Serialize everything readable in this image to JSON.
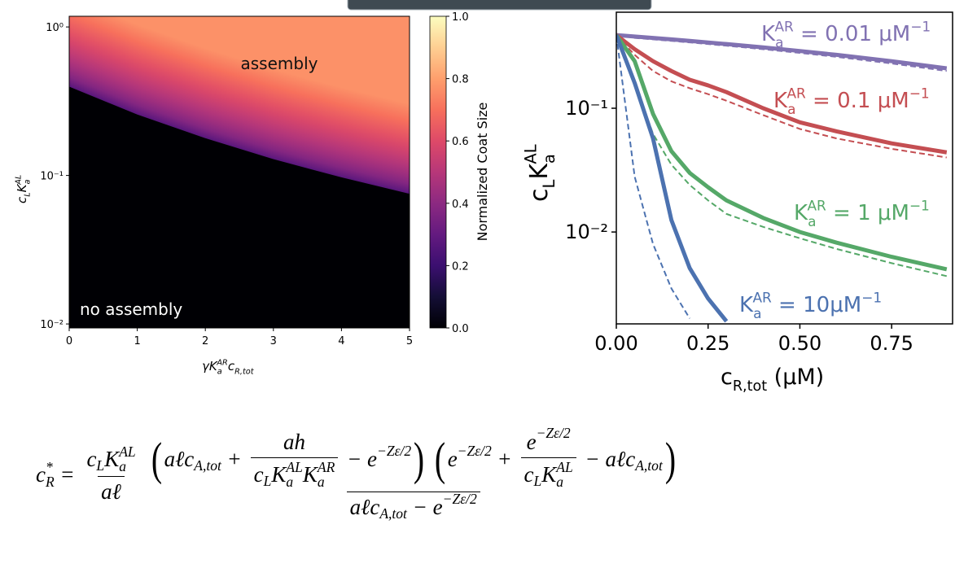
{
  "chart_data": [
    {
      "type": "heatmap",
      "colormap": "magma",
      "xlim": [
        0,
        5
      ],
      "xticks": [
        0,
        1,
        2,
        3,
        4,
        5
      ],
      "ylim": [
        0.0094,
        1.18
      ],
      "log_y": true,
      "yticks": [
        {
          "value": 0.01,
          "label": "10⁻²"
        },
        {
          "value": 0.1,
          "label": "10⁻¹"
        },
        {
          "value": 1,
          "label": "10⁰"
        }
      ],
      "xlabel": [
        {
          "t": "γK"
        },
        {
          "stack": {
            "sup": "AR",
            "sub": "a"
          }
        },
        {
          "t": "c"
        },
        {
          "t": "R,tot",
          "pos": "sub"
        }
      ],
      "ylabel": [
        {
          "t": "c"
        },
        {
          "t": "L",
          "pos": "sub"
        },
        {
          "t": "K"
        },
        {
          "stack": {
            "sup": "AL",
            "sub": "a"
          }
        }
      ],
      "boundary": {
        "x": [
          0,
          1,
          2,
          3,
          4,
          5
        ],
        "y": [
          0.4,
          0.26,
          0.18,
          0.13,
          0.098,
          0.076
        ]
      },
      "z_boundary": 0.28,
      "z_top": 0.77,
      "colorbar": {
        "label": "Normalized Coat Size",
        "lim": [
          0,
          1
        ],
        "ticks": [
          {
            "value": 0,
            "label": "0.0"
          },
          0.2,
          0.4,
          0.6,
          0.8,
          {
            "value": 1,
            "label": "1.0"
          }
        ]
      },
      "annotations": [
        {
          "text": "assembly",
          "color": "#111111"
        },
        {
          "text": "no assembly",
          "color": "#ffffff"
        }
      ]
    },
    {
      "type": "line",
      "log_y": true,
      "xlim": [
        0,
        0.916
      ],
      "xticks": [
        {
          "value": 0,
          "label": "0.00"
        },
        0.25,
        {
          "value": 0.5,
          "label": "0.50"
        },
        0.75
      ],
      "ylim": [
        0.00181,
        0.597
      ],
      "yticks": [
        {
          "value": 0.01,
          "label": "10⁻²"
        },
        {
          "value": 0.1,
          "label": "10⁻¹"
        }
      ],
      "xlabel": [
        {
          "t": "c"
        },
        {
          "t": "R,tot",
          "pos": "sub"
        },
        {
          "t": " (μM)"
        }
      ],
      "ylabel": [
        {
          "t": "c"
        },
        {
          "t": "L",
          "pos": "sub"
        },
        {
          "t": "K"
        },
        {
          "stack": {
            "sup": "AL",
            "sub": "a"
          }
        }
      ],
      "x": [
        0,
        0.05,
        0.1,
        0.15,
        0.2,
        0.25,
        0.3,
        0.4,
        0.5,
        0.6,
        0.75,
        0.9
      ],
      "series": [
        {
          "color": "#8172b2",
          "style": "solid",
          "values": [
            0.39,
            0.38,
            0.37,
            0.36,
            0.35,
            0.34,
            0.33,
            0.31,
            0.29,
            0.27,
            0.24,
            0.21
          ]
        },
        {
          "color": "#8172b2",
          "style": "dashed",
          "values": [
            0.39,
            0.37,
            0.36,
            0.35,
            0.34,
            0.33,
            0.32,
            0.3,
            0.28,
            0.26,
            0.23,
            0.2
          ]
        },
        {
          "color": "#c44e52",
          "style": "solid",
          "values": [
            0.39,
            0.3,
            0.24,
            0.2,
            0.17,
            0.153,
            0.135,
            0.1,
            0.077,
            0.065,
            0.052,
            0.044
          ]
        },
        {
          "color": "#c44e52",
          "style": "dashed",
          "values": [
            0.39,
            0.27,
            0.2,
            0.165,
            0.145,
            0.13,
            0.115,
            0.088,
            0.068,
            0.057,
            0.047,
            0.04
          ]
        },
        {
          "color": "#55a868",
          "style": "solid",
          "values": [
            0.39,
            0.24,
            0.09,
            0.045,
            0.03,
            0.023,
            0.018,
            0.013,
            0.01,
            0.0082,
            0.0063,
            0.005
          ]
        },
        {
          "color": "#55a868",
          "style": "dashed",
          "values": [
            0.39,
            0.16,
            0.062,
            0.035,
            0.024,
            0.018,
            0.014,
            0.011,
            0.0089,
            0.0073,
            0.0056,
            0.0044
          ]
        },
        {
          "color": "#4c72b0",
          "style": "solid",
          "values": [
            0.39,
            0.16,
            0.057,
            0.0125,
            0.0051,
            0.0029,
            0.0019,
            null,
            null,
            null,
            null,
            null
          ]
        },
        {
          "color": "#4c72b0",
          "style": "dashed",
          "values": [
            0.39,
            0.028,
            0.008,
            0.0035,
            0.002,
            null,
            null,
            null,
            null,
            null,
            null,
            null
          ]
        }
      ],
      "annotations": [
        {
          "color": "#8172b2",
          "text": [
            {
              "t": "K"
            },
            {
              "stack": {
                "sup": "AR",
                "sub": "a"
              }
            },
            {
              "t": " = 0.01 μM"
            },
            {
              "t": "−1",
              "pos": "sup"
            }
          ]
        },
        {
          "color": "#c44e52",
          "text": [
            {
              "t": "K"
            },
            {
              "stack": {
                "sup": "AR",
                "sub": "a"
              }
            },
            {
              "t": " = 0.1 μM"
            },
            {
              "t": "−1",
              "pos": "sup"
            }
          ]
        },
        {
          "color": "#55a868",
          "text": [
            {
              "t": "K"
            },
            {
              "stack": {
                "sup": "AR",
                "sub": "a"
              }
            },
            {
              "t": " = 1 μM"
            },
            {
              "t": "−1",
              "pos": "sup"
            }
          ]
        },
        {
          "color": "#4c72b0",
          "text": [
            {
              "t": "K"
            },
            {
              "stack": {
                "sup": "AR",
                "sub": "a"
              }
            },
            {
              "t": " = 10μM"
            },
            {
              "t": "−1",
              "pos": "sup"
            }
          ]
        }
      ]
    }
  ],
  "equation": [
    {
      "t": "c"
    },
    {
      "stack": {
        "sup": "*",
        "sub": "R"
      }
    },
    {
      "t": " = "
    },
    {
      "frac": {
        "num": [
          {
            "t": "c"
          },
          {
            "t": "L",
            "pos": "sub"
          },
          {
            "t": "K"
          },
          {
            "stack": {
              "sup": "AL",
              "sub": "a"
            }
          }
        ],
        "den": [
          {
            "t": "aℓ"
          }
        ]
      }
    },
    {
      "frac": {
        "num": [
          {
            "t": "(",
            "large": true
          },
          {
            "t": "aℓc"
          },
          {
            "t": "A,tot",
            "pos": "sub"
          },
          {
            "t": " + "
          },
          {
            "frac": {
              "num": [
                {
                  "t": "ah"
                }
              ],
              "den": [
                {
                  "t": "c"
                },
                {
                  "t": "L",
                  "pos": "sub"
                },
                {
                  "t": "K"
                },
                {
                  "stack": {
                    "sup": "AL",
                    "sub": "a"
                  }
                },
                {
                  "t": "K"
                },
                {
                  "stack": {
                    "sup": "AR",
                    "sub": "a"
                  }
                }
              ]
            }
          },
          {
            "t": " − e"
          },
          {
            "t": "−Zε/2",
            "pos": "sup"
          },
          {
            "t": ")",
            "large": true
          },
          {
            "t": " "
          },
          {
            "t": "(",
            "large": true
          },
          {
            "t": "e"
          },
          {
            "t": "−Zε/2",
            "pos": "sup"
          },
          {
            "t": " + "
          },
          {
            "frac": {
              "num": [
                {
                  "t": "e"
                },
                {
                  "t": "−Zε/2",
                  "pos": "sup"
                }
              ],
              "den": [
                {
                  "t": "c"
                },
                {
                  "t": "L",
                  "pos": "sub"
                },
                {
                  "t": "K"
                },
                {
                  "stack": {
                    "sup": "AL",
                    "sub": "a"
                  }
                }
              ]
            }
          },
          {
            "t": " − aℓc"
          },
          {
            "t": "A,tot",
            "pos": "sub"
          },
          {
            "t": ")",
            "large": true
          }
        ],
        "den": [
          {
            "t": "aℓc"
          },
          {
            "t": "A,tot",
            "pos": "sub"
          },
          {
            "t": " − e"
          },
          {
            "t": "−Zε/2",
            "pos": "sup"
          }
        ]
      }
    }
  ]
}
